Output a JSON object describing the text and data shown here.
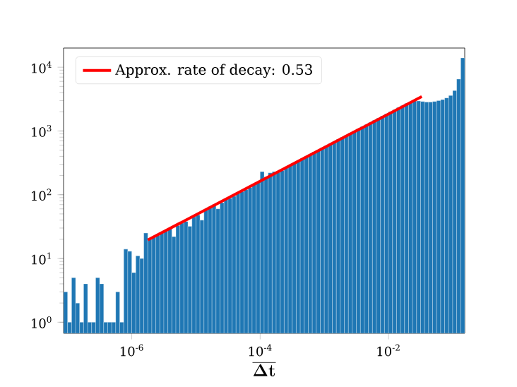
{
  "chart_data": {
    "type": "histogram",
    "log": "xy",
    "legend": "top left",
    "color": "#1f77b4",
    "xlabel": "\\overline{\\mathbf{\\Delta t}}",
    "bins": [
      8.66e-08,
      1e-07,
      1.155e-07,
      1.334e-07,
      1.54e-07,
      1.778e-07,
      2.054e-07,
      2.371e-07,
      2.738e-07,
      3.162e-07,
      3.652e-07,
      4.217e-07,
      4.87e-07,
      5.623e-07,
      6.494e-07,
      7.499e-07,
      8.66e-07,
      1e-06,
      1.155e-06,
      1.334e-06,
      1.54e-06,
      1.778e-06,
      2.054e-06,
      2.371e-06,
      2.738e-06,
      3.162e-06,
      3.652e-06,
      4.217e-06,
      4.87e-06,
      5.623e-06,
      6.494e-06,
      7.499e-06,
      8.66e-06,
      1e-05,
      1.155e-05,
      1.334e-05,
      1.54e-05,
      1.778e-05,
      2.054e-05,
      2.371e-05,
      2.738e-05,
      3.162e-05,
      3.652e-05,
      4.217e-05,
      4.87e-05,
      5.623e-05,
      6.494e-05,
      7.499e-05,
      8.66e-05,
      0.0001,
      0.0001155,
      0.0001334,
      0.000154,
      0.0001778,
      0.0002054,
      0.0002371,
      0.0002738,
      0.0003162,
      0.0003652,
      0.0004217,
      0.000487,
      0.0005623,
      0.0006494,
      0.0007499,
      0.000866,
      0.001,
      0.001155,
      0.001334,
      0.00154,
      0.001778,
      0.002054,
      0.002371,
      0.002738,
      0.003162,
      0.003652,
      0.004217,
      0.00487,
      0.005623,
      0.006494,
      0.007499,
      0.00866,
      0.01,
      0.01155,
      0.01334,
      0.0154,
      0.01778,
      0.02054,
      0.02371,
      0.02738,
      0.03162,
      0.03652,
      0.04217,
      0.0487,
      0.05623,
      0.06494,
      0.07499,
      0.0866,
      0.1,
      0.1155,
      0.1334,
      0.154
    ],
    "values": [
      3,
      1,
      5,
      2,
      1,
      4,
      1,
      1,
      5,
      4,
      1,
      1,
      1,
      3,
      1,
      14,
      13,
      6,
      11,
      10,
      25,
      20,
      22,
      23,
      25,
      27,
      30,
      22,
      33,
      36,
      38,
      32,
      45,
      48,
      40,
      58,
      65,
      70,
      60,
      75,
      85,
      88,
      95,
      105,
      112,
      120,
      130,
      145,
      160,
      230,
      190,
      220,
      230,
      225,
      240,
      270,
      290,
      310,
      340,
      370,
      400,
      430,
      470,
      500,
      540,
      580,
      630,
      680,
      740,
      800,
      860,
      930,
      1000,
      1080,
      1170,
      1260,
      1360,
      1470,
      1590,
      1720,
      1850,
      2000,
      2150,
      2330,
      2500,
      2700,
      2850,
      2950,
      2950,
      2900,
      2850,
      2850,
      2900,
      3000,
      3100,
      3300,
      3600,
      4300,
      6500,
      14000
    ],
    "series": [
      {
        "type": "line",
        "name": "Approx. rate of decay: 0.53",
        "color": "#ff0000",
        "x": [
          1.78e-06,
          0.033
        ],
        "values": [
          19.5,
          3470
        ]
      }
    ],
    "xlim": [
      8.66e-08,
      0.154
    ],
    "ylim": [
      0.67,
      20000
    ],
    "xticks": [
      {
        "value": 1e-06,
        "label": "10$^{-6}$"
      },
      {
        "value": 0.0001,
        "label": "10$^{-4}$"
      },
      {
        "value": 0.01,
        "label": "10$^{-2}$"
      }
    ],
    "yticks": [
      {
        "value": 1,
        "label": "10$^{0}$"
      },
      {
        "value": 10,
        "label": "10$^{1}$"
      },
      {
        "value": 100,
        "label": "10$^{2}$"
      },
      {
        "value": 1000,
        "label": "10$^{3}$"
      },
      {
        "value": 10000,
        "label": "10$^{4}$"
      }
    ]
  }
}
